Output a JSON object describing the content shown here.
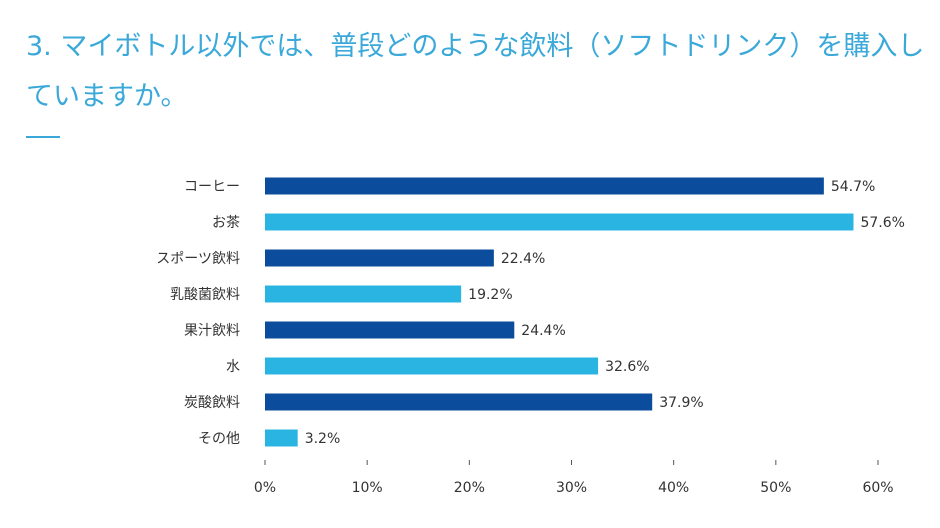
{
  "title": "3. マイボトル以外では、普段どのような飲料（ソフトドリンク）を購入していますか。",
  "chart_data": {
    "type": "bar",
    "orientation": "horizontal",
    "title": "",
    "categories": [
      "コーヒー",
      "お茶",
      "スポーツ飲料",
      "乳酸菌飲料",
      "果汁飲料",
      "水",
      "炭酸飲料",
      "その他"
    ],
    "values": [
      54.7,
      57.6,
      22.4,
      19.2,
      24.4,
      32.6,
      37.9,
      3.2
    ],
    "value_labels": [
      "54.7%",
      "57.6%",
      "22.4%",
      "19.2%",
      "24.4%",
      "32.6%",
      "37.9%",
      "3.2%"
    ],
    "xlim": [
      0,
      60
    ],
    "xticks": [
      "0%",
      "10%",
      "20%",
      "30%",
      "40%",
      "50%",
      "60%"
    ],
    "grid": false,
    "colors": [
      "#0b4c9c",
      "#29b4e2"
    ]
  }
}
